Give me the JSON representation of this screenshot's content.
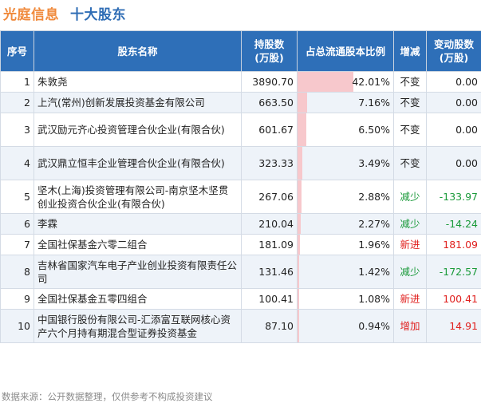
{
  "header": {
    "brand": "光庭信息",
    "subtitle": "十大股东"
  },
  "columns": [
    "序号",
    "股东名称",
    "持股数\n(万股)",
    "占总流通股本比例",
    "增减",
    "变动股数\n(万股)"
  ],
  "chart_data": {
    "type": "table",
    "rows": [
      {
        "index": "1",
        "name": "朱敦尧",
        "shares": "3890.70",
        "ratio": "42.01%",
        "ratio_value": 42.01,
        "change": "不变",
        "change_type": "neutral",
        "change_shares": "0.00"
      },
      {
        "index": "2",
        "name": "上汽(常州)创新发展投资基金有限公司",
        "shares": "663.50",
        "ratio": "7.16%",
        "ratio_value": 7.16,
        "change": "不变",
        "change_type": "neutral",
        "change_shares": "0.00"
      },
      {
        "index": "3",
        "name": "武汉励元齐心投资管理合伙企业(有限合伙)",
        "shares": "601.67",
        "ratio": "6.50%",
        "ratio_value": 6.5,
        "change": "不变",
        "change_type": "neutral",
        "change_shares": "0.00"
      },
      {
        "index": "4",
        "name": "武汉鼎立恒丰企业管理合伙企业(有限合伙)",
        "shares": "323.33",
        "ratio": "3.49%",
        "ratio_value": 3.49,
        "change": "不变",
        "change_type": "neutral",
        "change_shares": "0.00"
      },
      {
        "index": "5",
        "name": "坚木(上海)投资管理有限公司-南京坚木坚贯创业投资合伙企业(有限合伙)",
        "shares": "267.06",
        "ratio": "2.88%",
        "ratio_value": 2.88,
        "change": "减少",
        "change_type": "down",
        "change_shares": "-133.97"
      },
      {
        "index": "6",
        "name": "李霖",
        "shares": "210.04",
        "ratio": "2.27%",
        "ratio_value": 2.27,
        "change": "减少",
        "change_type": "down",
        "change_shares": "-14.24"
      },
      {
        "index": "7",
        "name": "全国社保基金六零二组合",
        "shares": "181.09",
        "ratio": "1.96%",
        "ratio_value": 1.96,
        "change": "新进",
        "change_type": "up",
        "change_shares": "181.09"
      },
      {
        "index": "8",
        "name": "吉林省国家汽车电子产业创业投资有限责任公司",
        "shares": "131.46",
        "ratio": "1.42%",
        "ratio_value": 1.42,
        "change": "减少",
        "change_type": "down",
        "change_shares": "-172.57"
      },
      {
        "index": "9",
        "name": "全国社保基金五零四组合",
        "shares": "100.41",
        "ratio": "1.08%",
        "ratio_value": 1.08,
        "change": "新进",
        "change_type": "up",
        "change_shares": "100.41"
      },
      {
        "index": "10",
        "name": "中国银行股份有限公司-汇添富互联网核心资产六个月持有期混合型证券投资基金",
        "shares": "87.10",
        "ratio": "0.94%",
        "ratio_value": 0.94,
        "change": "增加",
        "change_type": "up",
        "change_shares": "14.91"
      }
    ]
  },
  "colors": {
    "header_bg": "#2e6fb8",
    "bar": "#f7c8cc",
    "up": "#e0201e",
    "down": "#1a9a3a",
    "brand": "#f08a3c",
    "subtitle": "#2f6db5"
  },
  "footer": "数据来源：公开数据整理，仅供参考不构成投资建议"
}
